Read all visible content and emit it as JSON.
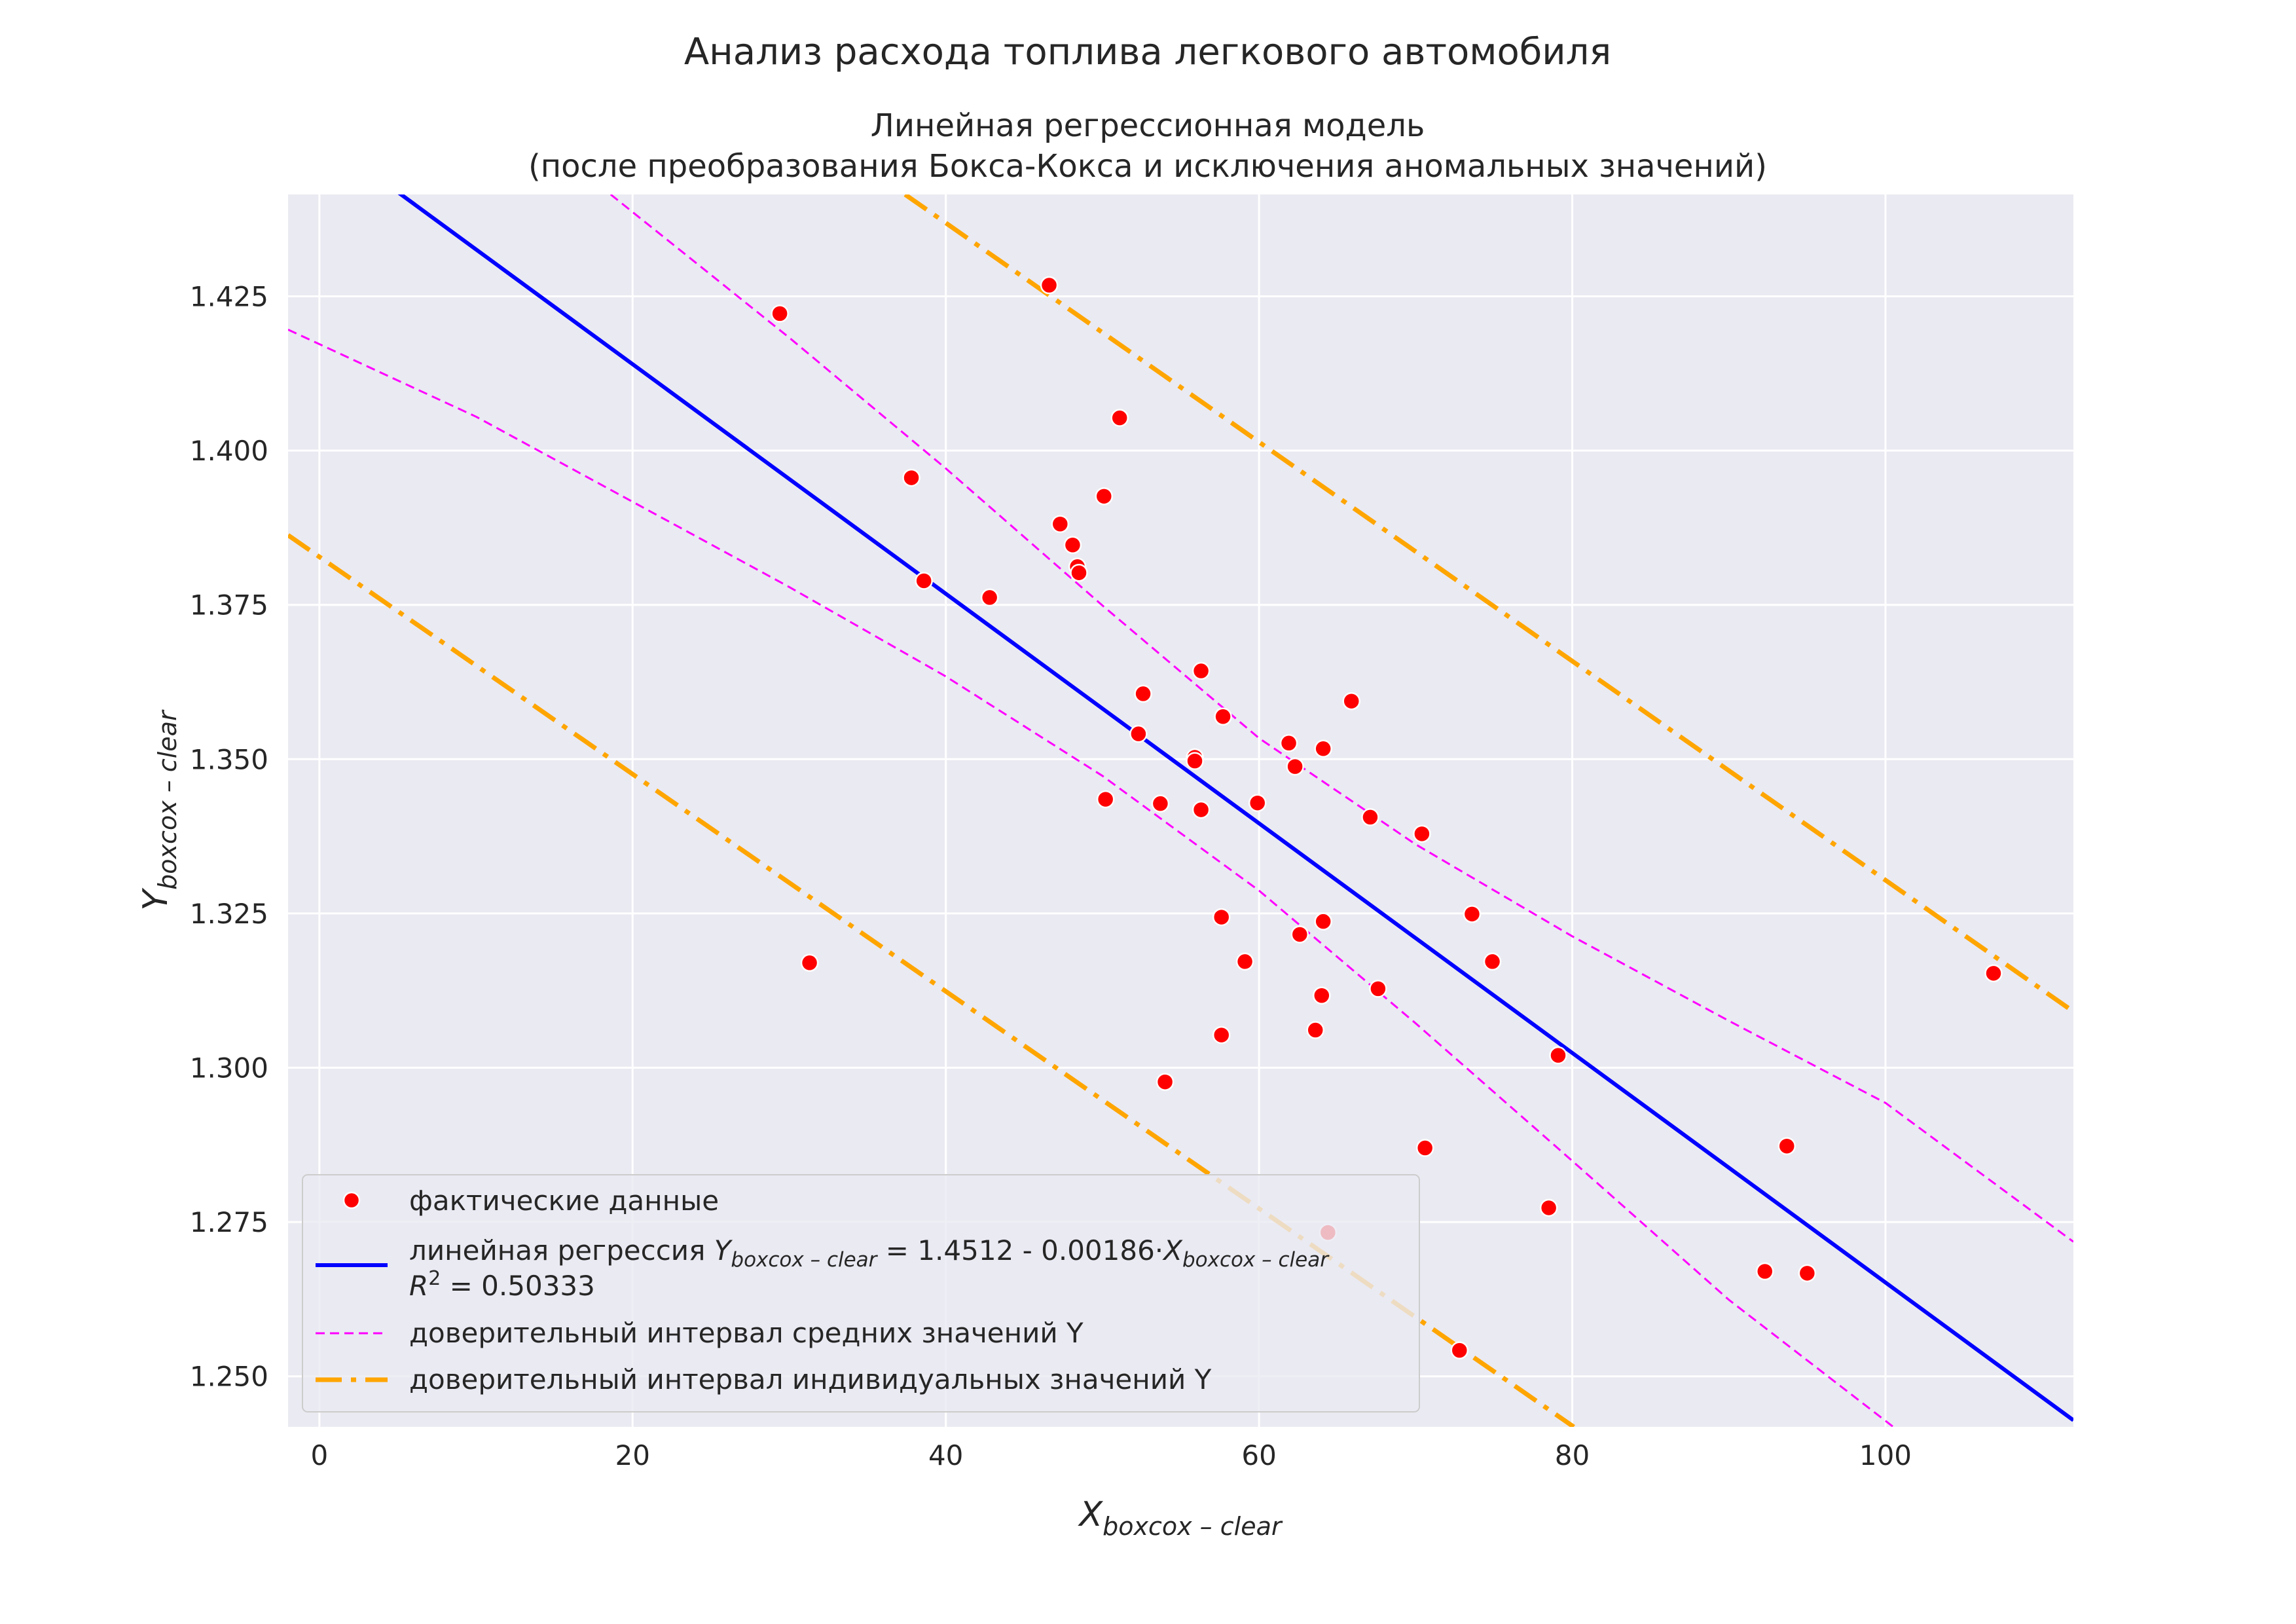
{
  "suptitle": "Анализ расхода топлива легкового автомобиля",
  "title_lines": [
    "Линейная регрессионная модель",
    "(после преобразования Бокса-Кокса и исключения аномальных значений)"
  ],
  "chart_data": {
    "type": "scatter",
    "title": "Линейная регрессионная модель (после преобразования Бокса-Кокса и исключения аномальных значений)",
    "xlabel": {
      "base": "X",
      "sub": "boxcox – clear"
    },
    "ylabel": {
      "base": "Y",
      "sub": "boxcox – clear"
    },
    "xlim": [
      -2,
      112
    ],
    "ylim": [
      1.2418,
      1.4415
    ],
    "xticks": [
      0,
      20,
      40,
      60,
      80,
      100
    ],
    "yticks": [
      1.25,
      1.275,
      1.3,
      1.325,
      1.35,
      1.375,
      1.4,
      1.425
    ],
    "ytick_labels": [
      "1.250",
      "1.275",
      "1.300",
      "1.325",
      "1.350",
      "1.375",
      "1.400",
      "1.425"
    ],
    "grid": true,
    "legend_position": "lower-left",
    "background": "#eaeaf2",
    "points": [
      [
        29.4,
        1.4222
      ],
      [
        46.6,
        1.4268
      ],
      [
        51.1,
        1.4053
      ],
      [
        37.8,
        1.3956
      ],
      [
        50.1,
        1.3926
      ],
      [
        47.3,
        1.3881
      ],
      [
        48.1,
        1.3847
      ],
      [
        48.4,
        1.3812
      ],
      [
        48.5,
        1.3802
      ],
      [
        38.6,
        1.3789
      ],
      [
        42.8,
        1.3762
      ],
      [
        56.3,
        1.3643
      ],
      [
        52.6,
        1.3606
      ],
      [
        65.9,
        1.3594
      ],
      [
        57.7,
        1.3569
      ],
      [
        52.3,
        1.3541
      ],
      [
        61.9,
        1.3526
      ],
      [
        64.1,
        1.3517
      ],
      [
        55.9,
        1.3503
      ],
      [
        55.9,
        1.3497
      ],
      [
        62.3,
        1.3488
      ],
      [
        50.2,
        1.3435
      ],
      [
        53.7,
        1.3428
      ],
      [
        59.9,
        1.3429
      ],
      [
        56.3,
        1.3418
      ],
      [
        67.1,
        1.3406
      ],
      [
        70.4,
        1.3379
      ],
      [
        73.6,
        1.3249
      ],
      [
        57.6,
        1.3244
      ],
      [
        64.1,
        1.3237
      ],
      [
        62.6,
        1.3216
      ],
      [
        31.3,
        1.317
      ],
      [
        59.1,
        1.3172
      ],
      [
        74.9,
        1.3172
      ],
      [
        67.6,
        1.3128
      ],
      [
        64.0,
        1.3117
      ],
      [
        63.6,
        1.3061
      ],
      [
        57.6,
        1.3053
      ],
      [
        79.1,
        1.302
      ],
      [
        54.0,
        1.2977
      ],
      [
        70.6,
        1.287
      ],
      [
        93.7,
        1.2873
      ],
      [
        78.5,
        1.2773
      ],
      [
        64.4,
        1.2733
      ],
      [
        92.3,
        1.267
      ],
      [
        95.0,
        1.2667
      ],
      [
        72.8,
        1.2542
      ],
      [
        106.9,
        1.3153
      ]
    ],
    "regression": {
      "intercept": 1.4512,
      "slope": -0.00186,
      "r2": 0.50333
    },
    "ci_mean": {
      "upper": [
        [
          18.6,
          1.4415
        ],
        [
          30,
          1.4183
        ],
        [
          40,
          1.3971
        ],
        [
          50,
          1.3749
        ],
        [
          60,
          1.3534
        ],
        [
          70,
          1.3362
        ],
        [
          80,
          1.3213
        ],
        [
          90,
          1.3076
        ],
        [
          100,
          1.2943
        ],
        [
          112,
          1.2718
        ]
      ],
      "lower": [
        [
          -2,
          1.4196
        ],
        [
          10,
          1.4055
        ],
        [
          20,
          1.3917
        ],
        [
          30,
          1.3779
        ],
        [
          40,
          1.3634
        ],
        [
          50,
          1.3473
        ],
        [
          60,
          1.3287
        ],
        [
          70,
          1.3072
        ],
        [
          80,
          1.2849
        ],
        [
          90,
          1.2624
        ],
        [
          100.5,
          1.2418
        ]
      ]
    },
    "ci_individual": {
      "upper": [
        [
          37.4,
          1.4415
        ],
        [
          112,
          1.3091
        ]
      ],
      "lower": [
        [
          -2,
          1.3863
        ],
        [
          80.1,
          1.2418
        ]
      ]
    },
    "legend": [
      {
        "kind": "marker",
        "label": "фактические данные"
      },
      {
        "kind": "regression",
        "label": "линейная регрессия",
        "equation": " = 1.4512 - 0.00186·",
        "r2_label": " = 0.50333"
      },
      {
        "kind": "ci-mean",
        "label": "доверительный интервал средних значений Y"
      },
      {
        "kind": "ci-individual",
        "label": "доверительный интервал индивидуальных значений Y"
      }
    ],
    "colors": {
      "points": "#ff0000",
      "regression": "#0000ff",
      "ci_mean": "#ff00ff",
      "ci_individual": "#ffa500",
      "grid": "#ffffff",
      "text": "#262626"
    }
  }
}
